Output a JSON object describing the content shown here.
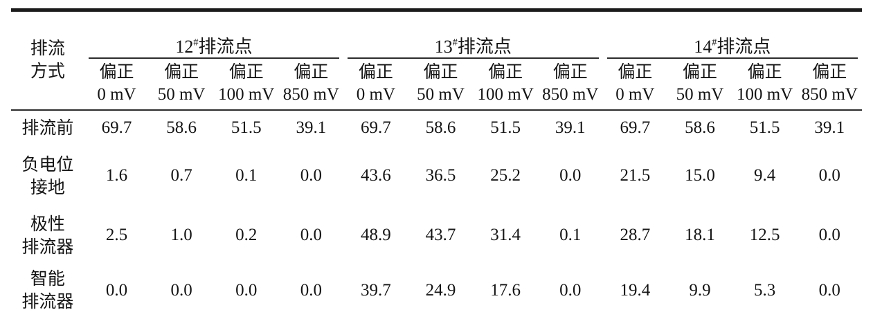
{
  "table": {
    "corner_label": "排流\n方式",
    "groups": [
      {
        "num": "12",
        "hash": "#",
        "name": "排流点"
      },
      {
        "num": "13",
        "hash": "#",
        "name": "排流点"
      },
      {
        "num": "14",
        "hash": "#",
        "name": "排流点"
      }
    ],
    "sub_headers": [
      "偏正\n0 mV",
      "偏正\n50 mV",
      "偏正\n100 mV",
      "偏正\n850 mV",
      "偏正\n0 mV",
      "偏正\n50 mV",
      "偏正\n100 mV",
      "偏正\n850 mV",
      "偏正\n0 mV",
      "偏正\n50 mV",
      "偏正\n100 mV",
      "偏正\n850 mV"
    ],
    "rows": [
      {
        "label": "排流前",
        "values": [
          "69.7",
          "58.6",
          "51.5",
          "39.1",
          "69.7",
          "58.6",
          "51.5",
          "39.1",
          "69.7",
          "58.6",
          "51.5",
          "39.1"
        ]
      },
      {
        "label": "负电位\n接地",
        "values": [
          "1.6",
          "0.7",
          "0.1",
          "0.0",
          "43.6",
          "36.5",
          "25.2",
          "0.0",
          "21.5",
          "15.0",
          "9.4",
          "0.0"
        ]
      },
      {
        "label": "极性\n排流器",
        "values": [
          "2.5",
          "1.0",
          "0.2",
          "0.0",
          "48.9",
          "43.7",
          "31.4",
          "0.1",
          "28.7",
          "18.1",
          "12.5",
          "0.0"
        ]
      },
      {
        "label": "智能\n排流器",
        "values": [
          "0.0",
          "0.0",
          "0.0",
          "0.0",
          "39.7",
          "24.9",
          "17.6",
          "0.0",
          "19.4",
          "9.9",
          "5.3",
          "0.0"
        ]
      }
    ]
  }
}
